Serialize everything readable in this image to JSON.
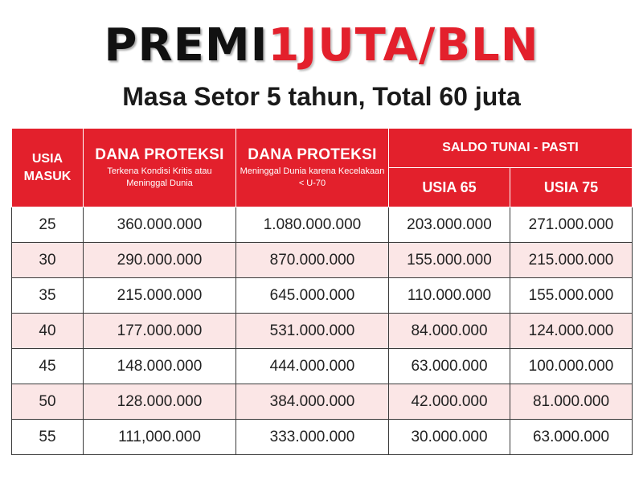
{
  "header": {
    "title_black": "PREMI",
    "title_red": "1JUTA/BLN",
    "subtitle": "Masa Setor 5 tahun, Total 60 juta"
  },
  "table": {
    "col_usia_masuk": "USIA MASUK",
    "col_proteksi_1_title": "DANA PROTEKSI",
    "col_proteksi_1_sub": "Terkena Kondisi Kritis atau Meninggal Dunia",
    "col_proteksi_2_title": "DANA PROTEKSI",
    "col_proteksi_2_sub": "Meninggal Dunia karena Kecelakaan < U-70",
    "col_saldo_group": "SALDO TUNAI - PASTI",
    "col_usia_65": "USIA 65",
    "col_usia_75": "USIA 75",
    "rows": [
      {
        "usia": "25",
        "proteksi_kritis": "360.000.000",
        "proteksi_kecelakaan": "1.080.000.000",
        "saldo_65": "203.000.000",
        "saldo_75": "271.000.000"
      },
      {
        "usia": "30",
        "proteksi_kritis": "290.000.000",
        "proteksi_kecelakaan": "870.000.000",
        "saldo_65": "155.000.000",
        "saldo_75": "215.000.000"
      },
      {
        "usia": "35",
        "proteksi_kritis": "215.000.000",
        "proteksi_kecelakaan": "645.000.000",
        "saldo_65": "110.000.000",
        "saldo_75": "155.000.000"
      },
      {
        "usia": "40",
        "proteksi_kritis": "177.000.000",
        "proteksi_kecelakaan": "531.000.000",
        "saldo_65": "84.000.000",
        "saldo_75": "124.000.000"
      },
      {
        "usia": "45",
        "proteksi_kritis": "148.000.000",
        "proteksi_kecelakaan": "444.000.000",
        "saldo_65": "63.000.000",
        "saldo_75": "100.000.000"
      },
      {
        "usia": "50",
        "proteksi_kritis": "128.000.000",
        "proteksi_kecelakaan": "384.000.000",
        "saldo_65": "42.000.000",
        "saldo_75": "81.000.000"
      },
      {
        "usia": "55",
        "proteksi_kritis": "111,000.000",
        "proteksi_kecelakaan": "333.000.000",
        "saldo_65": "30.000.000",
        "saldo_75": "63.000.000"
      }
    ]
  },
  "colors": {
    "header_red": "#e3202c",
    "row_stripe": "#fbe6e6",
    "title_black": "#111111"
  }
}
